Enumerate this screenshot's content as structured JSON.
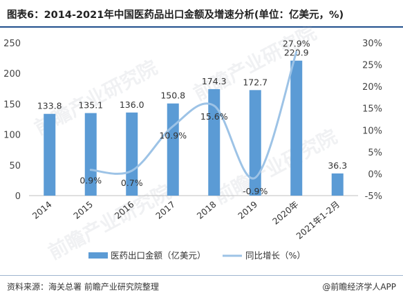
{
  "header": {
    "title": "图表6：2014-2021年中国医药品出口金额及增速分析(单位：亿美元，%)"
  },
  "footer": {
    "source": "资料来源：海关总署 前瞻产业研究院整理",
    "brand": "@前瞻经济学人APP"
  },
  "watermark": {
    "text": "前瞻产业研究院"
  },
  "colors": {
    "bar": "#5b9bd5",
    "line": "#9dc3e6",
    "axis": "#bfbfbf",
    "divider": "#1f4e8c"
  },
  "chart_data": {
    "type": "bar",
    "categories": [
      "2014",
      "2015",
      "2016",
      "2017",
      "2018",
      "2019",
      "2020年",
      "2021年1-2月"
    ],
    "series": [
      {
        "name": "医药出口金额（亿美元）",
        "type": "bar",
        "axis": "left",
        "values": [
          133.8,
          135.1,
          136.0,
          150.8,
          174.3,
          172.7,
          220.9,
          36.3
        ],
        "labels": [
          "133.8",
          "135.1",
          "136.0",
          "150.8",
          "174.3",
          "172.7",
          "220.9",
          "36.3"
        ]
      },
      {
        "name": "同比增长（%）",
        "type": "line",
        "axis": "right",
        "values": [
          null,
          0.9,
          0.7,
          10.9,
          15.6,
          -0.9,
          27.9,
          null
        ],
        "labels": [
          "",
          "0.9%",
          "0.7%",
          "10.9%",
          "15.6%",
          "-0.9%",
          "27.9%",
          ""
        ]
      }
    ],
    "y_left": {
      "ylim": [
        0,
        250
      ],
      "ticks": [
        "0",
        "50",
        "100",
        "150",
        "200",
        "250"
      ],
      "tick_values": [
        0,
        50,
        100,
        150,
        200,
        250
      ]
    },
    "y_right": {
      "ylim": [
        -5,
        30
      ],
      "ticks": [
        "-5%",
        "0%",
        "5%",
        "10%",
        "15%",
        "20%",
        "25%",
        "30%"
      ],
      "tick_values": [
        -5,
        0,
        5,
        10,
        15,
        20,
        25,
        30
      ]
    },
    "grid": false,
    "legend": "bottom"
  }
}
